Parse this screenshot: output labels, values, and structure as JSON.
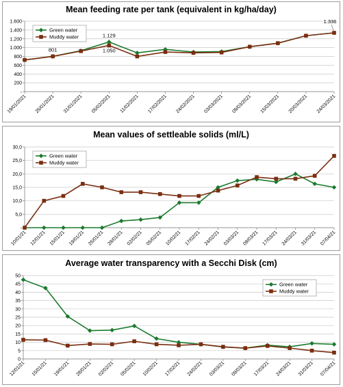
{
  "chart_data": [
    {
      "type": "line",
      "title": "Mean feeding rate per tank (equivalent in kg/ha/day)",
      "x": [
        "19/01/2021",
        "25/01/2021",
        "31/01/2021",
        "05/02/2021",
        "11/02/2021",
        "17/02/2021",
        "24/02/2021",
        "03/03/2021",
        "09/03/2021",
        "15/03/2021",
        "20/03/2021",
        "24/03/2021"
      ],
      "ylim": [
        0,
        1600
      ],
      "yticks": [
        "-",
        "200",
        "400",
        "600",
        "800",
        "1.000",
        "1.200",
        "1.400",
        "1.600"
      ],
      "grid": true,
      "legend": "top-left",
      "series": [
        {
          "name": "Green water",
          "color": "#1a7a2e",
          "marker": "diamond",
          "values": [
            720,
            801,
            930,
            1129,
            880,
            960,
            900,
            910,
            1020,
            1100,
            1270,
            1336
          ]
        },
        {
          "name": "Muddy water",
          "color": "#7a2e10",
          "marker": "square",
          "values": [
            720,
            801,
            920,
            1050,
            800,
            900,
            880,
            890,
            1020,
            1100,
            1270,
            1336
          ]
        }
      ],
      "annotations": [
        {
          "text": "801",
          "series": 1,
          "index": 1
        },
        {
          "text": "1.129",
          "series": 0,
          "index": 3
        },
        {
          "text": "1.050",
          "series": 1,
          "index": 3
        },
        {
          "text": "1.336",
          "series": 1,
          "index": 11
        }
      ]
    },
    {
      "type": "line",
      "title": "Mean values of settleable solids (ml/L)",
      "x": [
        "10/01/21",
        "12/01/21",
        "15/01/21",
        "19/01/21",
        "25/01/21",
        "28/01/21",
        "02/02/21",
        "05/02/21",
        "10/02/21",
        "17/02/21",
        "24/02/21",
        "03/03/21",
        "09/03/21",
        "17/03/21",
        "24/03/21",
        "31/03/21",
        "07/04/21"
      ],
      "ylim": [
        0,
        30
      ],
      "yticks": [
        "-",
        "5,0",
        "10,0",
        "15,0",
        "20,0",
        "25,0",
        "30,0"
      ],
      "grid": true,
      "legend": "top-left",
      "series": [
        {
          "name": "Green water",
          "color": "#1a7a2e",
          "marker": "diamond",
          "values": [
            0,
            0,
            0,
            0,
            0,
            2.5,
            3,
            3.8,
            9.3,
            9.3,
            15,
            17.5,
            18,
            17,
            20,
            16.3,
            15
          ]
        },
        {
          "name": "Muddy water",
          "color": "#7a2e10",
          "marker": "square",
          "values": [
            0,
            10,
            11.8,
            16.3,
            15,
            13.2,
            13.2,
            12.5,
            11.8,
            11.8,
            13.8,
            15.7,
            18.8,
            18.2,
            18.2,
            19.3,
            26.7
          ]
        }
      ]
    },
    {
      "type": "line",
      "title": "Average water transparency  with a Secchi Disk (cm)",
      "x": [
        "12/01/21",
        "15/01/21",
        "19/01/21",
        "28/01/21",
        "02/02/21",
        "05/02/21",
        "10/02/21",
        "17/02/21",
        "24/02/21",
        "03/03/21",
        "09/03/21",
        "17/03/21",
        "24/03/21",
        "31/03/21",
        "07/04/21"
      ],
      "ylim": [
        0,
        50
      ],
      "yticks": [
        "0",
        "5",
        "10",
        "15",
        "20",
        "25",
        "30",
        "35",
        "40",
        "45",
        "50"
      ],
      "grid": true,
      "legend": "top-right",
      "series": [
        {
          "name": "Green water",
          "color": "#1a7a2e",
          "marker": "diamond",
          "values": [
            47.5,
            42.5,
            25.5,
            17,
            17.3,
            19.8,
            12.2,
            10,
            8.8,
            7.2,
            6.5,
            8.3,
            7.3,
            9.3,
            8.8
          ]
        },
        {
          "name": "Muddy water",
          "color": "#7a2e10",
          "marker": "square",
          "values": [
            11.5,
            11.3,
            8,
            9,
            8.8,
            10.6,
            8.8,
            8.2,
            8.8,
            7.3,
            6.5,
            7.8,
            6.5,
            5,
            3.8
          ]
        }
      ]
    }
  ]
}
